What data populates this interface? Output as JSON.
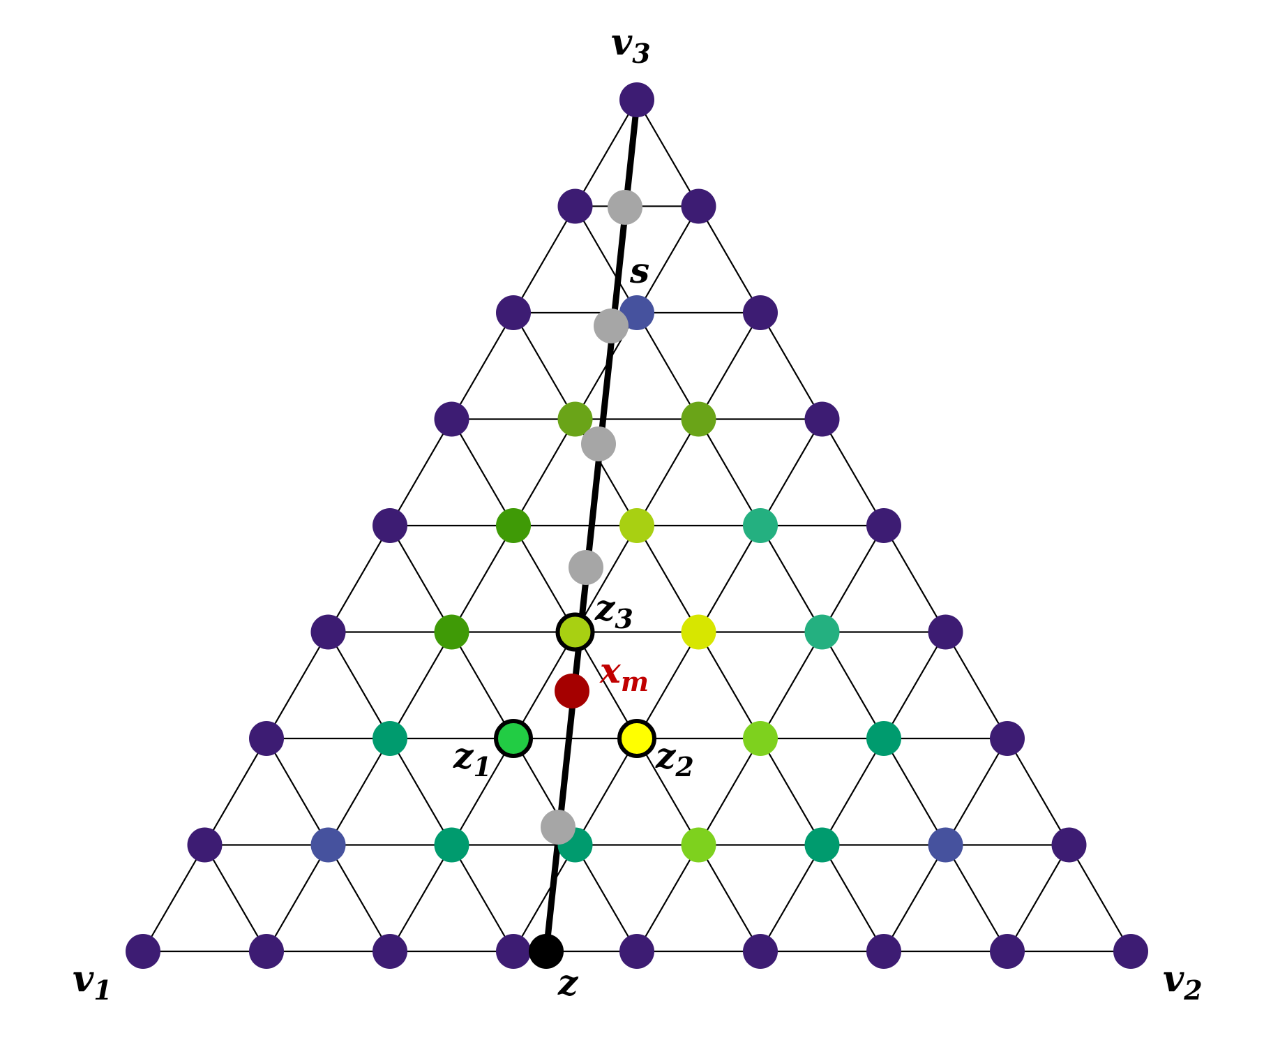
{
  "diagram": {
    "vertex_labels": {
      "v1": {
        "base": "v",
        "sub": "1"
      },
      "v2": {
        "base": "v",
        "sub": "2"
      },
      "v3": {
        "base": "v",
        "sub": "3"
      }
    },
    "point_labels": {
      "s": {
        "base": "s",
        "sub": ""
      },
      "z": {
        "base": "z",
        "sub": ""
      },
      "z1": {
        "base": "z",
        "sub": "1"
      },
      "z2": {
        "base": "z",
        "sub": "2"
      },
      "z3": {
        "base": "z",
        "sub": "3"
      },
      "xm": {
        "base": "x",
        "sub": "m"
      }
    },
    "colors": {
      "grid_line": "#000000",
      "path_line": "#000000",
      "crossing_point": "#a6a6a6",
      "xm_point": "#a50000",
      "z_point": "#000000",
      "label": "#000000",
      "xm_label": "#c00000"
    },
    "grid_size": 8,
    "node_colors": [
      [
        "#3d1c73",
        "#3d1c73",
        "#3d1c73",
        "#3d1c73",
        "#3d1c73",
        "#3d1c73",
        "#3d1c73",
        "#3d1c73",
        "#3d1c73"
      ],
      [
        "#3d1c73",
        "#46529e",
        "#009b6e",
        "#009b6e",
        "#7ed11e",
        "#009b6e",
        "#46529e",
        "#3d1c73"
      ],
      [
        "#3d1c73",
        "#009b6e",
        "#22cc44",
        "#ffff00",
        "#7ed11e",
        "#009b6e",
        "#3d1c73"
      ],
      [
        "#3d1c73",
        "#3f9a06",
        "#a8d012",
        "#d7e600",
        "#24b080",
        "#3d1c73"
      ],
      [
        "#3d1c73",
        "#3f9a06",
        "#a8d012",
        "#24b080",
        "#3d1c73"
      ],
      [
        "#3d1c73",
        "#6aa418",
        "#6aa418",
        "#3d1c73"
      ],
      [
        "#3d1c73",
        "#46529e",
        "#3d1c73"
      ],
      [
        "#3d1c73",
        "#3d1c73"
      ],
      [
        "#3d1c73"
      ]
    ],
    "highlighted_nodes": [
      "z1",
      "z2",
      "z3"
    ]
  }
}
